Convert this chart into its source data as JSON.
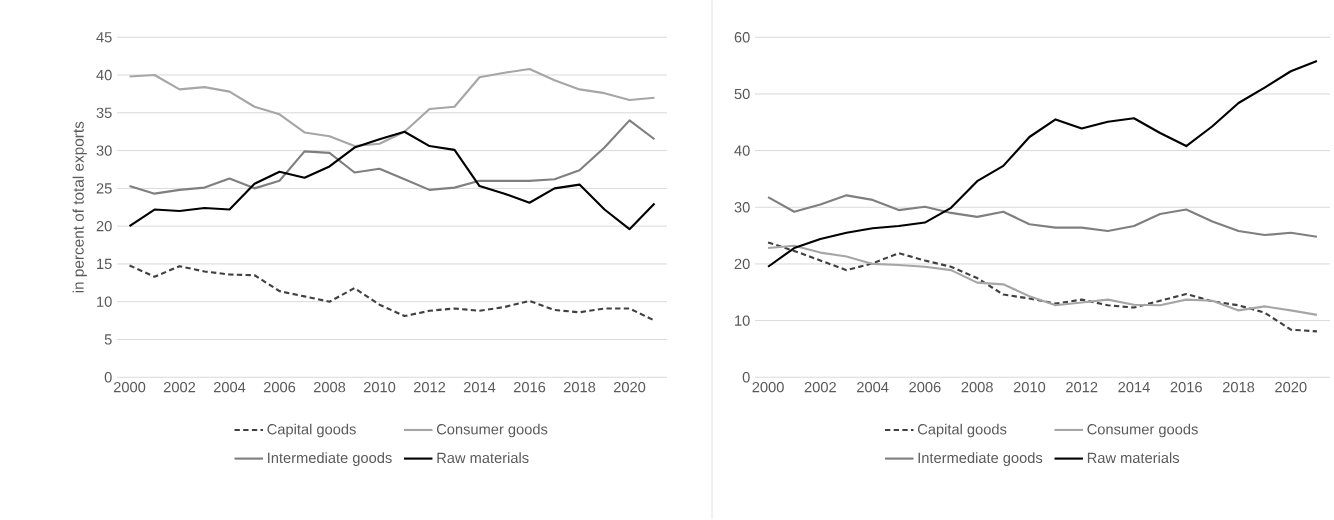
{
  "chart_data": [
    {
      "type": "line",
      "ylabel": "in percent of total exports",
      "x": [
        2000,
        2001,
        2002,
        2003,
        2004,
        2005,
        2006,
        2007,
        2008,
        2009,
        2010,
        2011,
        2012,
        2013,
        2014,
        2015,
        2016,
        2017,
        2018,
        2019,
        2020,
        2021
      ],
      "xlim": [
        1999.5,
        2021.5
      ],
      "xticks": [
        2000,
        2002,
        2004,
        2006,
        2008,
        2010,
        2012,
        2014,
        2016,
        2018,
        2020
      ],
      "ylim": [
        0,
        45
      ],
      "yticks": [
        0,
        5,
        10,
        15,
        20,
        25,
        30,
        35,
        40,
        45
      ],
      "grid": "y",
      "legend": "bottom",
      "marker": "none",
      "series": [
        {
          "name": "Capital goods",
          "color": "#404040",
          "line_style": "dashed",
          "values": [
            14.8,
            13.3,
            14.7,
            14.0,
            13.6,
            13.5,
            11.4,
            10.7,
            10.0,
            11.8,
            9.6,
            8.1,
            8.8,
            9.1,
            8.8,
            9.3,
            10.1,
            8.9,
            8.6,
            9.1,
            9.1,
            7.5
          ]
        },
        {
          "name": "Consumer goods",
          "color": "#a6a6a6",
          "line_style": "solid",
          "values": [
            39.8,
            40.0,
            38.1,
            38.4,
            37.8,
            35.8,
            34.8,
            32.4,
            31.9,
            30.6,
            30.9,
            32.5,
            35.5,
            35.8,
            39.7,
            40.3,
            40.8,
            39.3,
            38.1,
            37.6,
            36.7,
            37.0
          ]
        },
        {
          "name": "Intermediate goods",
          "color": "#7f7f7f",
          "line_style": "solid",
          "values": [
            25.3,
            24.3,
            24.8,
            25.1,
            26.3,
            25.0,
            26.0,
            29.9,
            29.7,
            27.1,
            27.6,
            26.2,
            24.8,
            25.1,
            26.0,
            26.0,
            26.0,
            26.2,
            27.4,
            30.4,
            34.0,
            31.5
          ]
        },
        {
          "name": "Raw materials",
          "color": "#000000",
          "line_style": "solid",
          "values": [
            20.0,
            22.2,
            22.0,
            22.4,
            22.2,
            25.6,
            27.2,
            26.4,
            27.9,
            30.4,
            31.5,
            32.5,
            30.6,
            30.1,
            25.3,
            24.3,
            23.1,
            25.0,
            25.5,
            22.2,
            19.6,
            23.0
          ]
        }
      ]
    },
    {
      "type": "line",
      "x": [
        2000,
        2001,
        2002,
        2003,
        2004,
        2005,
        2006,
        2007,
        2008,
        2009,
        2010,
        2011,
        2012,
        2013,
        2014,
        2015,
        2016,
        2017,
        2018,
        2019,
        2020,
        2021
      ],
      "xlim": [
        1999.5,
        2021.5
      ],
      "xticks": [
        2000,
        2002,
        2004,
        2006,
        2008,
        2010,
        2012,
        2014,
        2016,
        2018,
        2020
      ],
      "ylim": [
        0,
        60
      ],
      "yticks": [
        0,
        10,
        20,
        30,
        40,
        50,
        60
      ],
      "grid": "y",
      "legend": "bottom",
      "marker": "none",
      "series": [
        {
          "name": "Capital goods",
          "color": "#404040",
          "line_style": "dashed",
          "values": [
            23.8,
            22.3,
            20.6,
            18.9,
            20.1,
            21.9,
            20.6,
            19.5,
            17.5,
            14.6,
            13.9,
            13.0,
            13.7,
            12.7,
            12.3,
            13.5,
            14.7,
            13.4,
            12.7,
            11.4,
            8.4,
            8.1
          ]
        },
        {
          "name": "Consumer goods",
          "color": "#a6a6a6",
          "line_style": "solid",
          "values": [
            22.8,
            23.2,
            22.0,
            21.3,
            20.0,
            19.8,
            19.5,
            18.9,
            16.7,
            16.4,
            14.3,
            12.7,
            13.2,
            13.7,
            12.8,
            12.7,
            13.7,
            13.5,
            11.8,
            12.5,
            11.8,
            11.0
          ]
        },
        {
          "name": "Intermediate goods",
          "color": "#7f7f7f",
          "line_style": "solid",
          "values": [
            31.8,
            29.2,
            30.5,
            32.1,
            31.3,
            29.5,
            30.1,
            29.0,
            28.3,
            29.2,
            27.0,
            26.4,
            26.4,
            25.8,
            26.7,
            28.8,
            29.6,
            27.5,
            25.8,
            25.1,
            25.5,
            24.8
          ]
        },
        {
          "name": "Raw materials",
          "color": "#000000",
          "line_style": "solid",
          "values": [
            19.5,
            22.8,
            24.4,
            25.5,
            26.3,
            26.7,
            27.3,
            29.9,
            34.6,
            37.3,
            42.4,
            45.5,
            43.9,
            45.1,
            45.7,
            43.1,
            40.8,
            44.3,
            48.4,
            51.1,
            54.0,
            55.8
          ]
        }
      ]
    }
  ]
}
